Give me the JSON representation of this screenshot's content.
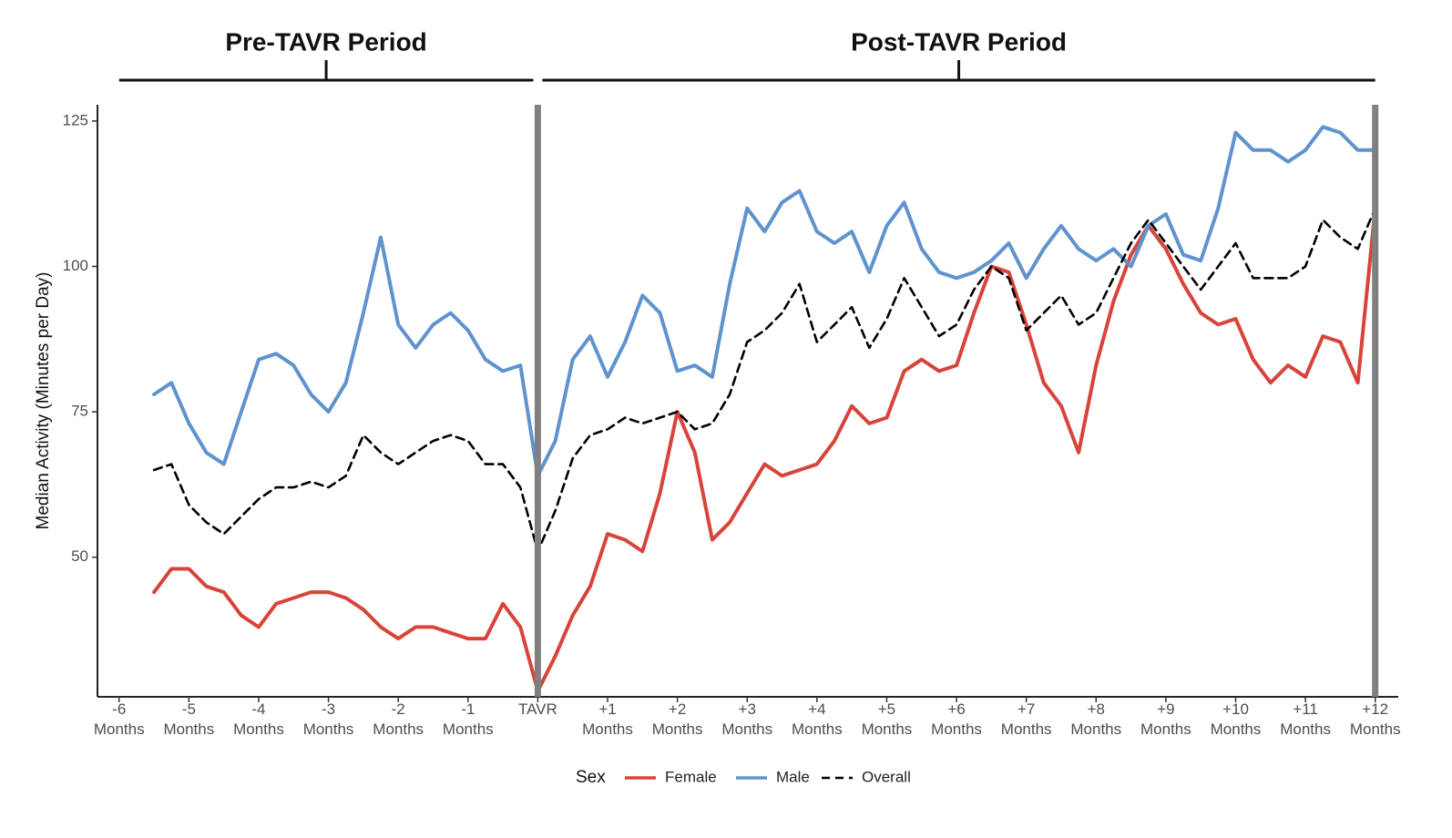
{
  "chart_data": {
    "type": "line",
    "y_label": "Median Activity (Minutes per Day)",
    "legend_title": "Sex",
    "legend_position": "bottom",
    "grid": false,
    "periods": [
      {
        "label": "Pre-TAVR Period",
        "start": -6,
        "end": 0
      },
      {
        "label": "Post-TAVR Period",
        "start": 0,
        "end": 12
      }
    ],
    "vlines": [
      0,
      12
    ],
    "vline_color": "#808080",
    "xlim": [
      -6.31,
      12.33
    ],
    "ylim": [
      26,
      127.8
    ],
    "yticks": [
      50,
      75,
      100,
      125
    ],
    "xticks": [
      {
        "value": -6,
        "label": "-6\nMonths"
      },
      {
        "value": -5,
        "label": "-5\nMonths"
      },
      {
        "value": -4,
        "label": "-4\nMonths"
      },
      {
        "value": -3,
        "label": "-3\nMonths"
      },
      {
        "value": -2,
        "label": "-2\nMonths"
      },
      {
        "value": -1,
        "label": "-1\nMonths"
      },
      {
        "value": 0,
        "label": "TAVR"
      },
      {
        "value": 1,
        "label": "+1\nMonths"
      },
      {
        "value": 2,
        "label": "+2\nMonths"
      },
      {
        "value": 3,
        "label": "+3\nMonths"
      },
      {
        "value": 4,
        "label": "+4\nMonths"
      },
      {
        "value": 5,
        "label": "+5\nMonths"
      },
      {
        "value": 6,
        "label": "+6\nMonths"
      },
      {
        "value": 7,
        "label": "+7\nMonths"
      },
      {
        "value": 8,
        "label": "+8\nMonths"
      },
      {
        "value": 9,
        "label": "+9\nMonths"
      },
      {
        "value": 10,
        "label": "+10\nMonths"
      },
      {
        "value": 11,
        "label": "+11\nMonths"
      },
      {
        "value": 12,
        "label": "+12\nMonths"
      }
    ],
    "x": [
      -5.5,
      -5.25,
      -5,
      -4.75,
      -4.5,
      -4.25,
      -4,
      -3.75,
      -3.5,
      -3.25,
      -3,
      -2.75,
      -2.5,
      -2.25,
      -2,
      -1.75,
      -1.5,
      -1.25,
      -1,
      -0.75,
      -0.5,
      -0.25,
      0,
      0.25,
      0.5,
      0.75,
      1,
      1.25,
      1.5,
      1.75,
      2,
      2.25,
      2.5,
      2.75,
      3,
      3.25,
      3.5,
      3.75,
      4,
      4.25,
      4.5,
      4.75,
      5,
      5.25,
      5.5,
      5.75,
      6,
      6.25,
      6.5,
      6.75,
      7,
      7.25,
      7.5,
      7.75,
      8,
      8.25,
      8.5,
      8.75,
      9,
      9.25,
      9.5,
      9.75,
      10,
      10.25,
      10.5,
      10.75,
      11,
      11.25,
      11.5,
      11.75,
      12
    ],
    "series": [
      {
        "name": "Female",
        "color": "#d8433a",
        "dashed": false,
        "values": [
          44,
          48,
          48,
          45,
          44,
          40,
          38,
          42,
          43,
          44,
          44,
          43,
          41,
          38,
          36,
          38,
          38,
          37,
          36,
          36,
          42,
          38,
          27,
          33,
          40,
          45,
          54,
          53,
          51,
          61,
          75,
          68,
          53,
          56,
          61,
          66,
          64,
          65,
          66,
          70,
          76,
          73,
          74,
          82,
          84,
          82,
          83,
          92,
          100,
          99,
          90,
          80,
          76,
          68,
          83,
          94,
          102,
          107,
          103,
          97,
          92,
          90,
          91,
          84,
          80,
          83,
          81,
          88,
          87,
          80,
          110
        ]
      },
      {
        "name": "Male",
        "color": "#5f93cd",
        "dashed": false,
        "values": [
          78,
          80,
          73,
          68,
          66,
          75,
          84,
          85,
          83,
          78,
          75,
          80,
          92,
          105,
          90,
          86,
          90,
          92,
          89,
          84,
          82,
          83,
          64,
          70,
          84,
          88,
          81,
          87,
          95,
          92,
          82,
          83,
          81,
          97,
          110,
          106,
          111,
          113,
          106,
          104,
          106,
          99,
          107,
          111,
          103,
          99,
          98,
          99,
          101,
          104,
          98,
          103,
          107,
          103,
          101,
          103,
          100,
          107,
          109,
          102,
          101,
          110,
          123,
          120,
          120,
          118,
          120,
          124,
          123,
          120,
          120
        ]
      },
      {
        "name": "Overall",
        "color": "#000000",
        "dashed": true,
        "values": [
          65,
          66,
          59,
          56,
          54,
          57,
          60,
          62,
          62,
          63,
          62,
          64,
          71,
          68,
          66,
          68,
          70,
          71,
          70,
          66,
          66,
          62,
          51,
          58,
          67,
          71,
          72,
          74,
          73,
          74,
          75,
          72,
          73,
          78,
          87,
          89,
          92,
          97,
          87,
          90,
          93,
          86,
          91,
          98,
          93,
          88,
          90,
          96,
          100,
          98,
          89,
          92,
          95,
          90,
          92,
          98,
          104,
          108,
          104,
          100,
          96,
          100,
          104,
          98,
          98,
          98,
          100,
          108,
          105,
          103,
          110
        ]
      }
    ]
  }
}
